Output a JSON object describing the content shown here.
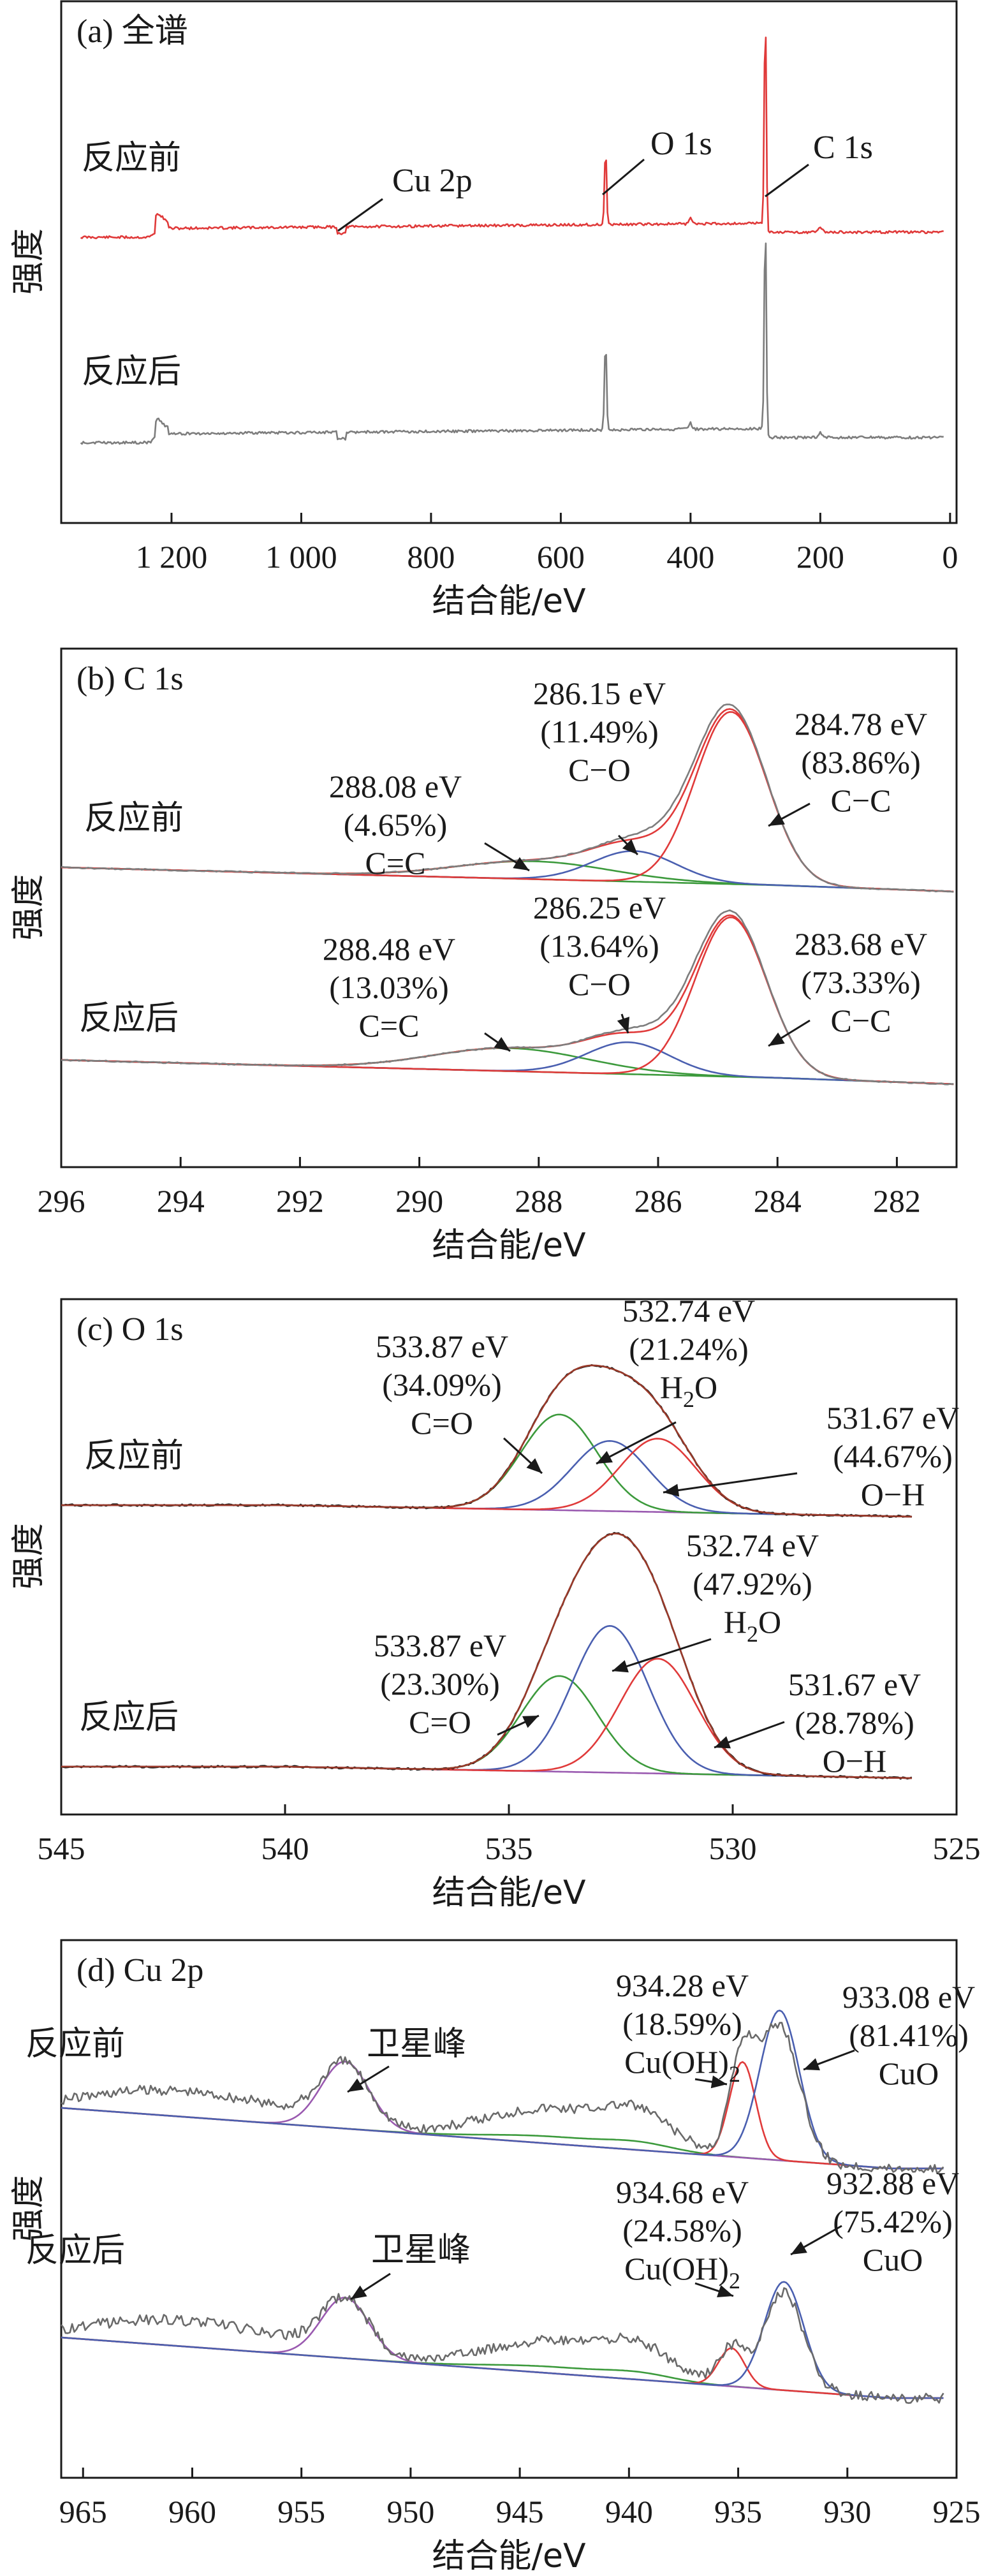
{
  "chart_data": [
    {
      "type": "line",
      "title": "(a) 全谱",
      "xlabel": "结合能/eV",
      "ylabel": "强度",
      "xlim": [
        1370,
        -10
      ],
      "x_ticks": [
        1200,
        1000,
        800,
        600,
        400,
        200,
        0
      ],
      "x_tick_labels": [
        "1 200",
        "1 000",
        "800",
        "600",
        "400",
        "200",
        "0"
      ],
      "samples": [
        "反应前",
        "反应后"
      ],
      "peak_labels": [
        {
          "text": "Cu 2p",
          "x": 933
        },
        {
          "text": "O 1s",
          "x": 531
        },
        {
          "text": "C 1s",
          "x": 284.8
        }
      ],
      "series": [
        {
          "name": "反应前",
          "color": "#e03a3a"
        },
        {
          "name": "反应后",
          "color": "#7d7d7d"
        }
      ]
    },
    {
      "type": "line",
      "title": "(b) C 1s",
      "xlabel": "结合能/eV",
      "ylabel": "强度",
      "xlim": [
        296,
        281
      ],
      "x_ticks": [
        296,
        294,
        292,
        290,
        288,
        286,
        284,
        282
      ],
      "x_tick_labels": [
        "296",
        "294",
        "292",
        "290",
        "288",
        "286",
        "284",
        "282"
      ],
      "samples": [
        "反应前",
        "反应后"
      ],
      "annotations": [
        {
          "sample": "反应前",
          "energy": "288.08 eV",
          "percent": "(4.65%)",
          "bond": "C=C"
        },
        {
          "sample": "反应前",
          "energy": "286.15 eV",
          "percent": "(11.49%)",
          "bond": "C−O"
        },
        {
          "sample": "反应前",
          "energy": "284.78 eV",
          "percent": "(83.86%)",
          "bond": "C−C"
        },
        {
          "sample": "反应后",
          "energy": "288.48 eV",
          "percent": "(13.03%)",
          "bond": "C=C"
        },
        {
          "sample": "反应后",
          "energy": "286.25 eV",
          "percent": "(13.64%)",
          "bond": "C−O"
        },
        {
          "sample": "反应后",
          "energy": "283.68 eV",
          "percent": "(73.33%)",
          "bond": "C−C"
        }
      ],
      "colors": {
        "raw": "#7d7d7d",
        "envelope": "#e03a3a",
        "blue": "#4a5fb0",
        "green": "#3c9a3c",
        "red": "#e03a3a"
      }
    },
    {
      "type": "line",
      "title": "(c) O 1s",
      "xlabel": "结合能/eV",
      "ylabel": "强度",
      "xlim": [
        545,
        525
      ],
      "x_ticks": [
        545,
        540,
        535,
        530,
        525
      ],
      "x_tick_labels": [
        "545",
        "540",
        "535",
        "530",
        "525"
      ],
      "samples": [
        "反应前",
        "反应后"
      ],
      "annotations": [
        {
          "sample": "反应前",
          "energy": "533.87 eV",
          "percent": "(34.09%)",
          "bond": "C=O"
        },
        {
          "sample": "反应前",
          "energy": "532.74 eV",
          "percent": "(21.24%)",
          "bond": "H",
          "sub": "2",
          "tail": "O"
        },
        {
          "sample": "反应前",
          "energy": "531.67 eV",
          "percent": "(44.67%)",
          "bond": "O−H"
        },
        {
          "sample": "反应后",
          "energy": "533.87 eV",
          "percent": "(23.30%)",
          "bond": "C=O"
        },
        {
          "sample": "反应后",
          "energy": "532.74 eV",
          "percent": "(47.92%)",
          "bond": "H",
          "sub": "2",
          "tail": "O"
        },
        {
          "sample": "反应后",
          "energy": "531.67 eV",
          "percent": "(28.78%)",
          "bond": "O−H"
        }
      ],
      "colors": {
        "raw": "#1a1a1a",
        "envelope": "#9a3a2a",
        "blue": "#4a5fb0",
        "green": "#3c9a3c",
        "red": "#e03a3a",
        "purple": "#9a5ab0"
      }
    },
    {
      "type": "line",
      "title": "(d) Cu 2p",
      "xlabel": "结合能/eV",
      "ylabel": "强度",
      "xlim": [
        966,
        925
      ],
      "x_ticks": [
        965,
        960,
        955,
        950,
        945,
        940,
        935,
        930,
        925
      ],
      "x_tick_labels": [
        "965",
        "960",
        "955",
        "950",
        "945",
        "940",
        "935",
        "930",
        "925"
      ],
      "samples": [
        "反应前",
        "反应后"
      ],
      "satellite_label": "卫星峰",
      "annotations": [
        {
          "sample": "反应前",
          "energy": "934.28 eV",
          "percent": "(18.59%)",
          "bond": "Cu(OH)",
          "sub": "2"
        },
        {
          "sample": "反应前",
          "energy": "933.08 eV",
          "percent": "(81.41%)",
          "bond": "CuO"
        },
        {
          "sample": "反应后",
          "energy": "934.68 eV",
          "percent": "(24.58%)",
          "bond": "Cu(OH)",
          "sub": "2"
        },
        {
          "sample": "反应后",
          "energy": "932.88 eV",
          "percent": "(75.42%)",
          "bond": "CuO"
        }
      ],
      "colors": {
        "raw": "#6a6a6a",
        "envelope": "#4a5fb0",
        "green": "#3c9a3c",
        "red": "#e03a3a",
        "purple": "#9a5ab0"
      }
    }
  ]
}
